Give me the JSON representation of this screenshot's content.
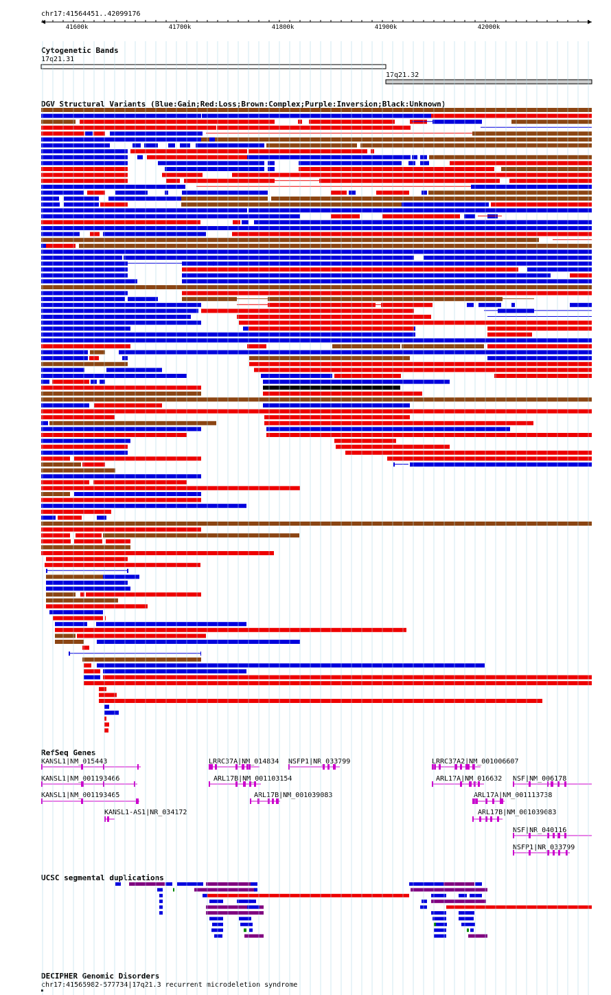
{
  "region": "chr17:41564451..42099176",
  "ruler_ticks": [
    "41600k",
    "41700k",
    "41800k",
    "41900k",
    "42000k"
  ],
  "cytobands": {
    "title": "Cytogenetic Bands",
    "bands": [
      {
        "name": "17q21.31",
        "color": "#ffffff"
      },
      {
        "name": "17q21.32",
        "color": "#cccccc"
      }
    ]
  },
  "dgv": {
    "title": "DGV Structural Variants (Blue:Gain;Red:Loss;Brown:Complex;Purple:Inversion;Black:Unknown)",
    "colors": {
      "gain": "#0000dd",
      "loss": "#ee0000",
      "complex": "#8b4513",
      "inversion": "#800080",
      "unknown": "#000000"
    }
  },
  "refseq": {
    "title": "RefSeq Genes",
    "gene_color": "#cc00cc",
    "genes": [
      "KANSL1|NM_015443",
      "KANSL1|NM_001193466",
      "KANSL1|NM_001193465",
      "KANSL1-AS1|NR_034172",
      "LRRC37A|NM_014834",
      "ARL17B|NM_001103154",
      "ARL17B|NM_001039083",
      "NSFP1|NR_033799",
      "LRRC37A2|NM_001006607",
      "ARL17A|NM_016632",
      "ARL17A|NM_001113738",
      "ARL17B|NM_001039083",
      "NSF|NM_006178",
      "NSF|NR_040116",
      "NSFP1|NR_033799"
    ]
  },
  "segdups": {
    "title": "UCSC segmental duplications",
    "colors": {
      "blue": "#0000dd",
      "red": "#ee0000",
      "purple": "#800080",
      "green": "#008800"
    }
  },
  "decipher": {
    "title": "DECIPHER Genomic Disorders",
    "entry": "chr17:41565982-577734|17q21.3 recurrent microdeletion syndrome"
  }
}
